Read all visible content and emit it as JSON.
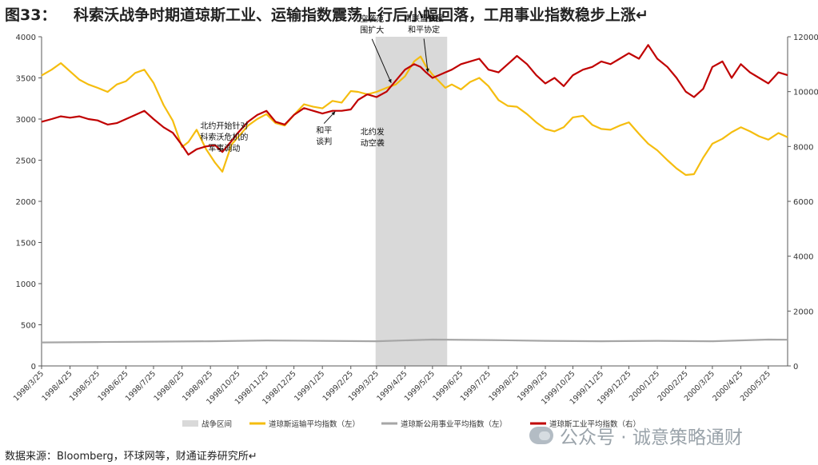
{
  "header": {
    "figure_no": "图33：",
    "title": "科索沃战争时期道琼斯工业、运输指数震荡上行后小幅回落，工用事业指数稳步上涨↵"
  },
  "footer": {
    "source": "数据来源：Bloomberg，环球网等，财通证券研究所↵"
  },
  "watermark": {
    "text": "公众号 · 诚意策略通财"
  },
  "colors": {
    "transport": "#f5bd0f",
    "utility": "#a6a6a6",
    "industrial": "#c00000",
    "war": "#d9d9d9",
    "axis": "#595959"
  },
  "chart_data": {
    "type": "line",
    "x": [
      "1998/3/25",
      "1998/4/25",
      "1998/5/25",
      "1998/6/25",
      "1998/7/25",
      "1998/8/25",
      "1998/9/25",
      "1998/10/25",
      "1998/11/25",
      "1998/12/25",
      "1999/1/25",
      "1999/2/25",
      "1999/3/25",
      "1999/4/25",
      "1999/5/25",
      "1999/6/25",
      "1999/7/25",
      "1999/8/25",
      "1999/9/25",
      "1999/10/25",
      "1999/11/25",
      "1999/12/25",
      "2000/1/25",
      "2000/2/25",
      "2000/3/25",
      "2000/4/25",
      "2000/5/25"
    ],
    "xend": "2000/6/15",
    "y_left": {
      "min": 0,
      "max": 4000,
      "ticks": [
        0,
        500,
        1000,
        1500,
        2000,
        2500,
        3000,
        3500,
        4000
      ]
    },
    "y_right": {
      "min": 0,
      "max": 12000,
      "ticks": [
        0,
        2000,
        4000,
        6000,
        8000,
        10000,
        12000
      ]
    },
    "war_period": {
      "start": "1999/3/24",
      "end": "1999/6/10",
      "label": "战争区间"
    },
    "series": [
      {
        "name": "道琼斯运输平均指数（左）",
        "axis": "left",
        "color_key": "transport",
        "points": [
          [
            "1998/3/25",
            3530
          ],
          [
            "1998/4/5",
            3600
          ],
          [
            "1998/4/15",
            3680
          ],
          [
            "1998/4/25",
            3580
          ],
          [
            "1998/5/5",
            3480
          ],
          [
            "1998/5/15",
            3420
          ],
          [
            "1998/5/25",
            3380
          ],
          [
            "1998/6/5",
            3330
          ],
          [
            "1998/6/15",
            3420
          ],
          [
            "1998/6/25",
            3460
          ],
          [
            "1998/7/5",
            3560
          ],
          [
            "1998/7/15",
            3600
          ],
          [
            "1998/7/25",
            3440
          ],
          [
            "1998/8/5",
            3170
          ],
          [
            "1998/8/15",
            2980
          ],
          [
            "1998/8/25",
            2660
          ],
          [
            "1998/9/1",
            2720
          ],
          [
            "1998/9/10",
            2870
          ],
          [
            "1998/9/20",
            2640
          ],
          [
            "1998/9/30",
            2470
          ],
          [
            "1998/10/8",
            2360
          ],
          [
            "1998/10/18",
            2690
          ],
          [
            "1998/10/25",
            2780
          ],
          [
            "1998/11/5",
            2920
          ],
          [
            "1998/11/15",
            3000
          ],
          [
            "1998/11/25",
            3060
          ],
          [
            "1998/12/5",
            2950
          ],
          [
            "1998/12/15",
            2920
          ],
          [
            "1998/12/25",
            3050
          ],
          [
            "1999/1/5",
            3180
          ],
          [
            "1999/1/15",
            3150
          ],
          [
            "1999/1/25",
            3130
          ],
          [
            "1999/2/5",
            3220
          ],
          [
            "1999/2/15",
            3200
          ],
          [
            "1999/2/25",
            3340
          ],
          [
            "1999/3/5",
            3330
          ],
          [
            "1999/3/15",
            3300
          ],
          [
            "1999/3/25",
            3330
          ],
          [
            "1999/4/5",
            3380
          ],
          [
            "1999/4/15",
            3420
          ],
          [
            "1999/4/25",
            3520
          ],
          [
            "1999/5/5",
            3700
          ],
          [
            "1999/5/12",
            3760
          ],
          [
            "1999/5/18",
            3640
          ],
          [
            "1999/5/25",
            3540
          ],
          [
            "1999/6/1",
            3460
          ],
          [
            "1999/6/8",
            3380
          ],
          [
            "1999/6/15",
            3420
          ],
          [
            "1999/6/25",
            3360
          ],
          [
            "1999/7/5",
            3450
          ],
          [
            "1999/7/15",
            3500
          ],
          [
            "1999/7/25",
            3400
          ],
          [
            "1999/8/5",
            3230
          ],
          [
            "1999/8/15",
            3160
          ],
          [
            "1999/8/25",
            3150
          ],
          [
            "1999/9/5",
            3060
          ],
          [
            "1999/9/15",
            2960
          ],
          [
            "1999/9/25",
            2880
          ],
          [
            "1999/10/5",
            2850
          ],
          [
            "1999/10/15",
            2900
          ],
          [
            "1999/10/25",
            3020
          ],
          [
            "1999/11/5",
            3040
          ],
          [
            "1999/11/15",
            2930
          ],
          [
            "1999/11/25",
            2880
          ],
          [
            "1999/12/5",
            2870
          ],
          [
            "1999/12/15",
            2920
          ],
          [
            "1999/12/25",
            2960
          ],
          [
            "2000/1/5",
            2820
          ],
          [
            "2000/1/15",
            2700
          ],
          [
            "2000/1/25",
            2620
          ],
          [
            "2000/2/5",
            2500
          ],
          [
            "2000/2/15",
            2400
          ],
          [
            "2000/2/25",
            2320
          ],
          [
            "2000/3/5",
            2330
          ],
          [
            "2000/3/15",
            2530
          ],
          [
            "2000/3/25",
            2700
          ],
          [
            "2000/4/5",
            2760
          ],
          [
            "2000/4/15",
            2840
          ],
          [
            "2000/4/25",
            2900
          ],
          [
            "2000/5/5",
            2850
          ],
          [
            "2000/5/15",
            2790
          ],
          [
            "2000/5/25",
            2750
          ],
          [
            "2000/6/5",
            2830
          ],
          [
            "2000/6/15",
            2780
          ]
        ]
      },
      {
        "name": "道琼斯公用事业平均指数（左）",
        "axis": "left",
        "color_key": "utility",
        "points": [
          [
            "1998/3/25",
            285
          ],
          [
            "1998/5/25",
            290
          ],
          [
            "1998/7/25",
            295
          ],
          [
            "1998/9/25",
            300
          ],
          [
            "1998/11/25",
            310
          ],
          [
            "1999/1/25",
            305
          ],
          [
            "1999/3/25",
            300
          ],
          [
            "1999/5/25",
            320
          ],
          [
            "1999/7/25",
            315
          ],
          [
            "1999/9/25",
            305
          ],
          [
            "1999/11/25",
            300
          ],
          [
            "2000/1/25",
            305
          ],
          [
            "2000/3/25",
            300
          ],
          [
            "2000/5/25",
            320
          ],
          [
            "2000/6/15",
            318
          ]
        ]
      },
      {
        "name": "道琼斯工业平均指数（右）",
        "axis": "right",
        "color_key": "industrial",
        "points": [
          [
            "1998/3/25",
            8900
          ],
          [
            "1998/4/5",
            9000
          ],
          [
            "1998/4/15",
            9100
          ],
          [
            "1998/4/25",
            9050
          ],
          [
            "1998/5/5",
            9100
          ],
          [
            "1998/5/15",
            9000
          ],
          [
            "1998/5/25",
            8950
          ],
          [
            "1998/6/5",
            8800
          ],
          [
            "1998/6/15",
            8850
          ],
          [
            "1998/6/25",
            9000
          ],
          [
            "1998/7/5",
            9150
          ],
          [
            "1998/7/15",
            9300
          ],
          [
            "1998/7/25",
            9000
          ],
          [
            "1998/8/5",
            8700
          ],
          [
            "1998/8/15",
            8500
          ],
          [
            "1998/8/25",
            8050
          ],
          [
            "1998/9/1",
            7700
          ],
          [
            "1998/9/10",
            7900
          ],
          [
            "1998/9/20",
            8000
          ],
          [
            "1998/9/30",
            8050
          ],
          [
            "1998/10/8",
            7800
          ],
          [
            "1998/10/18",
            8200
          ],
          [
            "1998/10/25",
            8500
          ],
          [
            "1998/11/5",
            8900
          ],
          [
            "1998/11/15",
            9150
          ],
          [
            "1998/11/25",
            9300
          ],
          [
            "1998/12/5",
            8900
          ],
          [
            "1998/12/15",
            8800
          ],
          [
            "1998/12/25",
            9150
          ],
          [
            "1999/1/5",
            9400
          ],
          [
            "1999/1/15",
            9300
          ],
          [
            "1999/1/25",
            9200
          ],
          [
            "1999/2/5",
            9300
          ],
          [
            "1999/2/15",
            9300
          ],
          [
            "1999/2/25",
            9350
          ],
          [
            "1999/3/5",
            9700
          ],
          [
            "1999/3/15",
            9900
          ],
          [
            "1999/3/25",
            9800
          ],
          [
            "1999/4/5",
            10000
          ],
          [
            "1999/4/15",
            10400
          ],
          [
            "1999/4/25",
            10800
          ],
          [
            "1999/5/5",
            11000
          ],
          [
            "1999/5/12",
            10900
          ],
          [
            "1999/5/18",
            10700
          ],
          [
            "1999/5/25",
            10500
          ],
          [
            "1999/6/1",
            10600
          ],
          [
            "1999/6/8",
            10700
          ],
          [
            "1999/6/15",
            10800
          ],
          [
            "1999/6/25",
            11000
          ],
          [
            "1999/7/5",
            11100
          ],
          [
            "1999/7/15",
            11200
          ],
          [
            "1999/7/25",
            10800
          ],
          [
            "1999/8/5",
            10700
          ],
          [
            "1999/8/15",
            11000
          ],
          [
            "1999/8/25",
            11300
          ],
          [
            "1999/9/5",
            11000
          ],
          [
            "1999/9/15",
            10600
          ],
          [
            "1999/9/25",
            10300
          ],
          [
            "1999/10/5",
            10500
          ],
          [
            "1999/10/15",
            10200
          ],
          [
            "1999/10/25",
            10600
          ],
          [
            "1999/11/5",
            10800
          ],
          [
            "1999/11/15",
            10900
          ],
          [
            "1999/11/25",
            11100
          ],
          [
            "1999/12/5",
            11000
          ],
          [
            "1999/12/15",
            11200
          ],
          [
            "1999/12/25",
            11400
          ],
          [
            "2000/1/5",
            11200
          ],
          [
            "2000/1/15",
            11700
          ],
          [
            "2000/1/25",
            11200
          ],
          [
            "2000/2/5",
            10900
          ],
          [
            "2000/2/15",
            10500
          ],
          [
            "2000/2/25",
            10000
          ],
          [
            "2000/3/5",
            9800
          ],
          [
            "2000/3/15",
            10100
          ],
          [
            "2000/3/25",
            10900
          ],
          [
            "2000/4/5",
            11100
          ],
          [
            "2000/4/15",
            10500
          ],
          [
            "2000/4/25",
            11000
          ],
          [
            "2000/5/5",
            10700
          ],
          [
            "2000/5/15",
            10500
          ],
          [
            "2000/5/25",
            10300
          ],
          [
            "2000/6/5",
            10700
          ],
          [
            "2000/6/15",
            10600
          ]
        ]
      }
    ],
    "annotations": [
      {
        "id": "ann-nato-targets-kosovo",
        "date": "1998/10/10",
        "value_left": 3020,
        "lines": [
          "北约开始针对",
          "科索沃危机的",
          "军事调动"
        ],
        "arrow": false
      },
      {
        "id": "ann-peace-talks",
        "date": "1999/2/8",
        "value_left": 3140,
        "lines": [
          "和平",
          "谈判"
        ],
        "arrow": true
      },
      {
        "id": "ann-nato-airstrike",
        "date": "1999/3/24",
        "value_left": 3250,
        "lines": [
          "北约发",
          "动空袭"
        ],
        "arrow": false
      },
      {
        "id": "ann-airstrike-expanded",
        "date": "1999/4/10",
        "value_left": 3390,
        "lines": [
          "空袭范",
          "围扩大"
        ],
        "arrow": true
      },
      {
        "id": "ann-yugoslavia-accepts",
        "date": "1999/5/20",
        "value_left": 3520,
        "lines": [
          "南联盟接受",
          "和平协定"
        ],
        "arrow": true
      }
    ]
  }
}
